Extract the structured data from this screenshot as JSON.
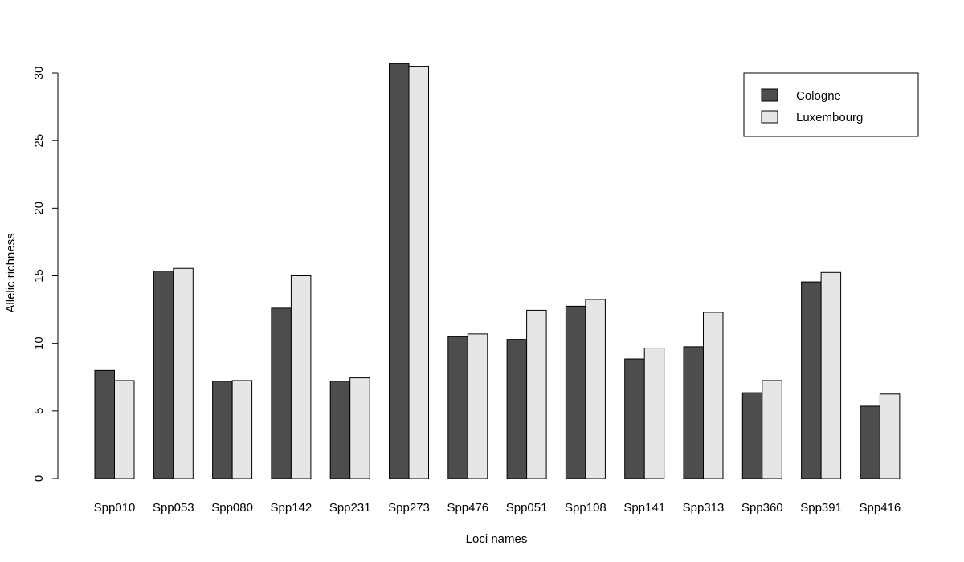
{
  "chart_data": {
    "type": "bar",
    "title": "",
    "xlabel": "Loci names",
    "ylabel": "Allelic richness",
    "ylim": [
      0,
      30
    ],
    "yticks": [
      0,
      5,
      10,
      15,
      20,
      25,
      30
    ],
    "grid": false,
    "legend_position": "top-right",
    "categories": [
      "Spp010",
      "Spp053",
      "Spp080",
      "Spp142",
      "Spp231",
      "Spp273",
      "Spp476",
      "Spp051",
      "Spp108",
      "Spp141",
      "Spp313",
      "Spp360",
      "Spp391",
      "Spp416"
    ],
    "series": [
      {
        "name": "Cologne",
        "color": "#4d4d4d",
        "values": [
          8.0,
          15.35,
          7.2,
          12.6,
          7.2,
          30.7,
          10.5,
          10.3,
          12.75,
          8.85,
          9.75,
          6.35,
          14.55,
          5.35
        ]
      },
      {
        "name": "Luxembourg",
        "color": "#e6e6e6",
        "values": [
          7.25,
          15.55,
          7.25,
          15.0,
          7.45,
          30.5,
          10.7,
          12.45,
          13.25,
          9.65,
          12.3,
          7.25,
          15.25,
          6.25
        ]
      }
    ]
  }
}
